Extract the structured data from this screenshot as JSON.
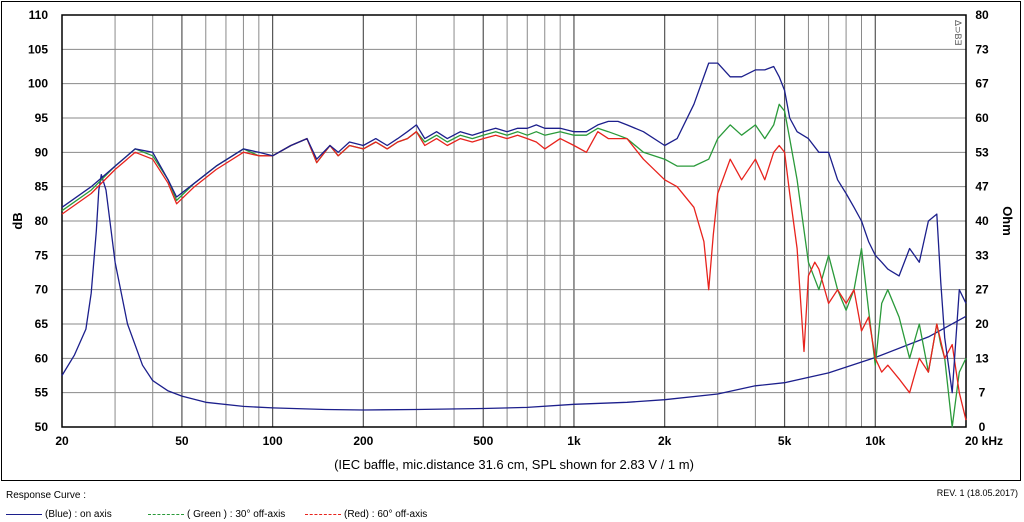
{
  "chart_data": {
    "type": "line",
    "title": "",
    "caption": "(IEC baffle, mic.distance 31.6 cm, SPL shown for 2.83 V / 1 m)",
    "xscale": "log",
    "xlim": [
      20,
      20000
    ],
    "x_ticks": [
      {
        "value": 20,
        "label": "20"
      },
      {
        "value": 50,
        "label": "50"
      },
      {
        "value": 100,
        "label": "100"
      },
      {
        "value": 200,
        "label": "200"
      },
      {
        "value": 500,
        "label": "500"
      },
      {
        "value": 1000,
        "label": "1k"
      },
      {
        "value": 2000,
        "label": "2k"
      },
      {
        "value": 5000,
        "label": "5k"
      },
      {
        "value": 10000,
        "label": "10k"
      },
      {
        "value": 20000,
        "label": "20 kHz"
      }
    ],
    "ylabel": "dB",
    "ylim": [
      50,
      110
    ],
    "y_ticks": [
      "50",
      "55",
      "60",
      "65",
      "70",
      "75",
      "80",
      "85",
      "90",
      "95",
      "100",
      "105",
      "110"
    ],
    "y2label": "Ohm",
    "y2lim": [
      0,
      80
    ],
    "y2_ticks": [
      "0",
      "7",
      "13",
      "20",
      "27",
      "33",
      "40",
      "47",
      "53",
      "60",
      "67",
      "73",
      "80"
    ],
    "grid": true,
    "watermark": "Δ⊃BƎ",
    "series": [
      {
        "name": "(Blue)  : on axis",
        "color": "#1c1f8c",
        "axis": "left",
        "x": [
          20,
          25,
          30,
          35,
          40,
          45,
          48,
          55,
          65,
          80,
          90,
          100,
          115,
          130,
          140,
          155,
          165,
          180,
          200,
          220,
          240,
          260,
          280,
          300,
          320,
          350,
          380,
          420,
          460,
          500,
          550,
          600,
          650,
          700,
          750,
          800,
          900,
          1000,
          1100,
          1200,
          1300,
          1400,
          1500,
          1700,
          2000,
          2200,
          2500,
          2800,
          3000,
          3300,
          3600,
          4000,
          4300,
          4600,
          4800,
          5000,
          5200,
          5500,
          6000,
          6500,
          7000,
          7500,
          8000,
          8500,
          9000,
          9500,
          10000,
          10500,
          11000,
          12000,
          13000,
          14000,
          15000,
          16000,
          16500,
          17000,
          18000,
          19000,
          20000
        ],
        "y": [
          82,
          85,
          88,
          90.5,
          90,
          86,
          83.5,
          85.5,
          88,
          90.5,
          90,
          89.5,
          91,
          92,
          89,
          91,
          90,
          91.5,
          91,
          92,
          91,
          92,
          93,
          94,
          92,
          93,
          92,
          93,
          92.5,
          93,
          93.5,
          93,
          93.5,
          93.5,
          94,
          93.5,
          93.5,
          93,
          93,
          94,
          94.5,
          94.5,
          94,
          93,
          91,
          92,
          97,
          103,
          103,
          101,
          101,
          102,
          102,
          102.5,
          101,
          99,
          95,
          93,
          92,
          90,
          90,
          86,
          84,
          82,
          80,
          77,
          75,
          74,
          73,
          72,
          76,
          74,
          80,
          81,
          71,
          63,
          55,
          70,
          68
        ]
      },
      {
        "name": "( Green ) : 30° off-axis",
        "color": "#2a9a3a",
        "axis": "left",
        "x": [
          20,
          25,
          30,
          35,
          40,
          45,
          48,
          55,
          65,
          80,
          90,
          100,
          115,
          130,
          140,
          155,
          165,
          180,
          200,
          220,
          240,
          260,
          280,
          300,
          320,
          350,
          380,
          420,
          460,
          500,
          550,
          600,
          650,
          700,
          750,
          800,
          900,
          1000,
          1100,
          1200,
          1300,
          1400,
          1500,
          1700,
          2000,
          2200,
          2500,
          2800,
          3000,
          3300,
          3600,
          4000,
          4300,
          4600,
          4800,
          5000,
          5200,
          5500,
          6000,
          6500,
          7000,
          7500,
          8000,
          8500,
          9000,
          9500,
          10000,
          10500,
          11000,
          12000,
          13000,
          14000,
          15000,
          16000,
          16500,
          17000,
          18000,
          19000,
          20000
        ],
        "y": [
          81.5,
          84.5,
          88,
          90.5,
          89.5,
          86,
          83,
          85.5,
          88,
          90.5,
          89.5,
          89.5,
          91,
          92,
          88.5,
          91,
          89.5,
          91,
          90.5,
          91.5,
          90.5,
          91.5,
          92,
          93,
          91.5,
          92.5,
          91.5,
          92.5,
          92,
          92.5,
          93,
          92.5,
          93,
          92.5,
          93,
          92.5,
          93,
          92.5,
          92.5,
          93.5,
          93,
          92.5,
          92,
          90,
          89,
          88,
          88,
          89,
          92,
          94,
          92.5,
          94,
          92,
          94,
          97,
          96,
          92,
          86,
          74,
          70,
          75,
          70,
          67,
          70,
          76,
          67,
          59,
          68,
          70,
          66,
          60,
          65,
          58,
          65,
          62,
          60,
          50,
          58,
          60
        ]
      },
      {
        "name": "(Red) : 60° off-axis",
        "color": "#e8231d",
        "axis": "left",
        "x": [
          20,
          25,
          30,
          35,
          40,
          45,
          48,
          55,
          65,
          80,
          90,
          100,
          115,
          130,
          140,
          155,
          165,
          180,
          200,
          220,
          240,
          260,
          280,
          300,
          320,
          350,
          380,
          420,
          460,
          500,
          550,
          600,
          650,
          700,
          750,
          800,
          900,
          1000,
          1100,
          1200,
          1300,
          1400,
          1500,
          1700,
          2000,
          2200,
          2500,
          2700,
          2800,
          2900,
          3000,
          3300,
          3600,
          4000,
          4300,
          4600,
          4800,
          5000,
          5200,
          5500,
          5800,
          6000,
          6300,
          6500,
          7000,
          7500,
          8000,
          8500,
          9000,
          9500,
          10000,
          10500,
          11000,
          12000,
          13000,
          14000,
          15000,
          16000,
          17000,
          18000,
          19000,
          20000
        ],
        "y": [
          81,
          84,
          87.5,
          90,
          89,
          85.5,
          82.5,
          85,
          87.5,
          90,
          89.5,
          89.5,
          91,
          92,
          88.5,
          91,
          89.5,
          91,
          90.5,
          91.5,
          90.5,
          91.5,
          92,
          93,
          91,
          92,
          91,
          92,
          91.5,
          92,
          92.5,
          92,
          92.5,
          92,
          91.5,
          90.5,
          92,
          91,
          90,
          93,
          92,
          92,
          92,
          89,
          86,
          85,
          82,
          77,
          70,
          78,
          84,
          89,
          86,
          89,
          86,
          90,
          91,
          90,
          84,
          76,
          61,
          72,
          74,
          73,
          68,
          70,
          68,
          70,
          64,
          66,
          60,
          58,
          59,
          57,
          55,
          60,
          58,
          65,
          60,
          62,
          55,
          51
        ]
      },
      {
        "name": "impedance",
        "color": "#1c1f8c",
        "axis": "right",
        "x": [
          20,
          22,
          24,
          25,
          26,
          26.5,
          27,
          28,
          30,
          33,
          37,
          40,
          45,
          50,
          60,
          80,
          100,
          150,
          200,
          300,
          500,
          700,
          1000,
          1500,
          2000,
          3000,
          4000,
          5000,
          7000,
          10000,
          15000,
          20000
        ],
        "y": [
          10,
          14,
          19,
          26,
          38,
          46,
          49,
          46,
          32,
          20,
          12,
          9,
          7,
          6,
          4.8,
          4,
          3.7,
          3.4,
          3.3,
          3.4,
          3.6,
          3.8,
          4.4,
          4.8,
          5.3,
          6.4,
          8,
          8.6,
          10.5,
          13.5,
          17.5,
          21.5
        ]
      }
    ]
  },
  "legend": {
    "title": "Response Curve :",
    "items": [
      {
        "label": "(Blue)  : on axis",
        "color": "#1c1f8c",
        "style": "solid"
      },
      {
        "label": "( Green ) : 30° off-axis",
        "color": "#2a9a3a",
        "style": "dashed"
      },
      {
        "label": "(Red) : 60° off-axis",
        "color": "#e8231d",
        "style": "dashed"
      }
    ]
  },
  "revision": "REV. 1 (18.05.2017)"
}
